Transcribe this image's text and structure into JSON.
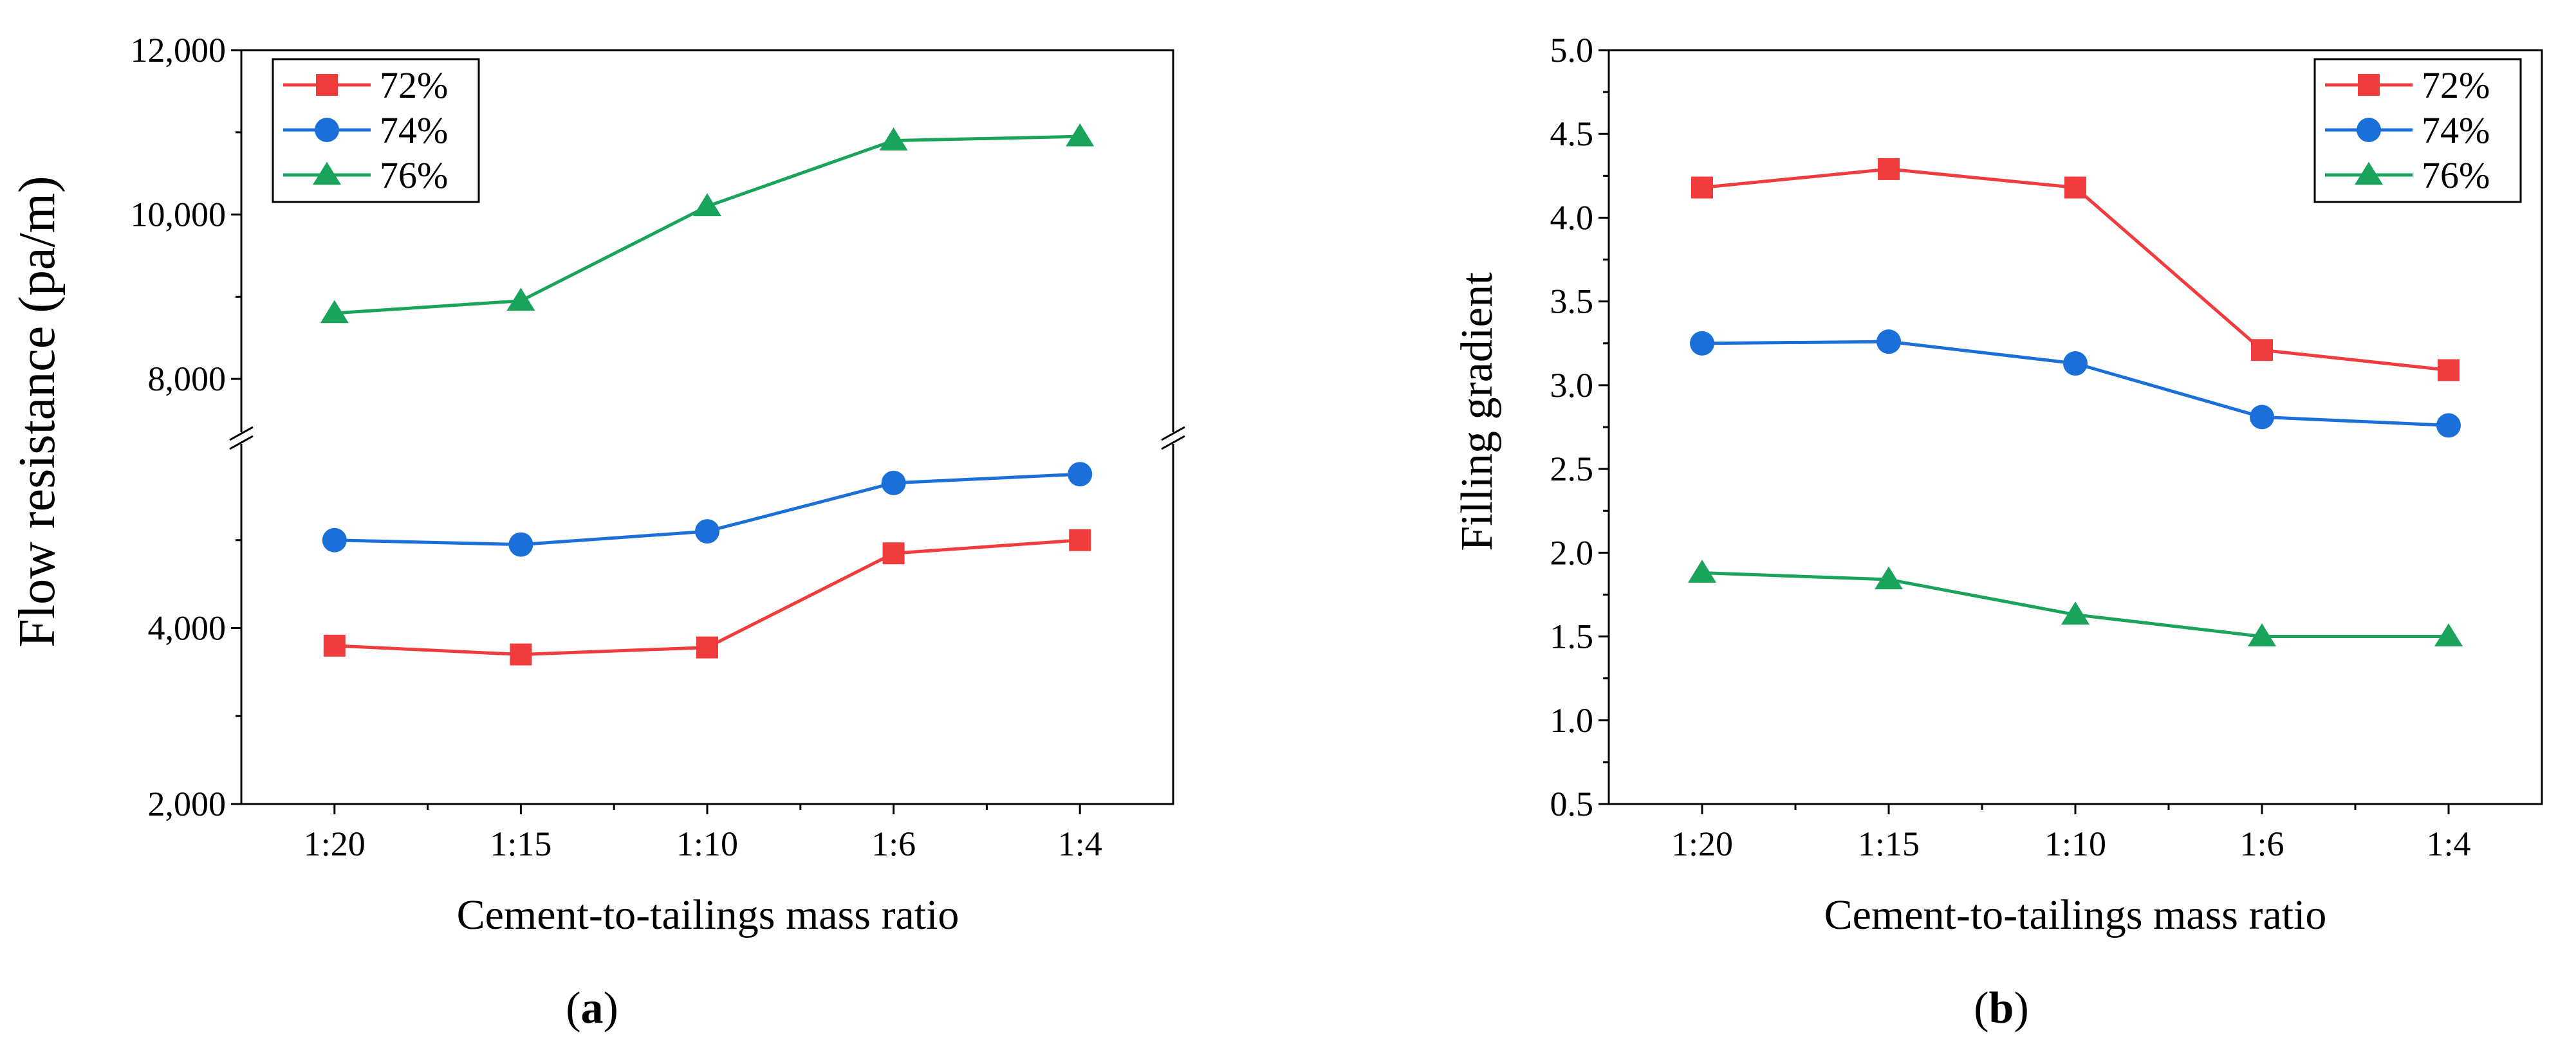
{
  "chart_data": [
    {
      "type": "line",
      "panel": "a",
      "caption_open": "(",
      "caption_letter": "a",
      "caption_close": ")",
      "xlabel": "Cement-to-tailings mass ratio",
      "ylabel": "Flow resistance (pa/m)",
      "categories": [
        "1:20",
        "1:15",
        "1:10",
        "1:6",
        "1:4"
      ],
      "axis_break": true,
      "lower_segment_ylim": [
        2000,
        6000
      ],
      "upper_segment_ylim": [
        7500,
        12000
      ],
      "y_ticks": [
        "2,000",
        "4,000",
        "8,000",
        "10,000",
        "12,000"
      ],
      "legend_position": "top-left",
      "series": [
        {
          "name": "72%",
          "marker": "square",
          "color": "#f03c3c",
          "values": [
            3800,
            3700,
            3780,
            4850,
            5000
          ]
        },
        {
          "name": "74%",
          "marker": "circle",
          "color": "#1a6fd8",
          "values": [
            5000,
            4950,
            5100,
            5650,
            5750
          ]
        },
        {
          "name": "76%",
          "marker": "triangle",
          "color": "#1aa35a",
          "values": [
            8800,
            8950,
            10100,
            10900,
            10950
          ]
        }
      ]
    },
    {
      "type": "line",
      "panel": "b",
      "caption_open": "(",
      "caption_letter": "b",
      "caption_close": ")",
      "xlabel": "Cement-to-tailings mass ratio",
      "ylabel": "Filling gradient",
      "categories": [
        "1:20",
        "1:15",
        "1:10",
        "1:6",
        "1:4"
      ],
      "ylim": [
        0.5,
        5.0
      ],
      "y_ticks": [
        "0.5",
        "1.0",
        "1.5",
        "2.0",
        "2.5",
        "3.0",
        "3.5",
        "4.0",
        "4.5",
        "5.0"
      ],
      "legend_position": "top-right",
      "series": [
        {
          "name": "72%",
          "marker": "square",
          "color": "#f03c3c",
          "values": [
            4.18,
            4.29,
            4.18,
            3.21,
            3.09
          ]
        },
        {
          "name": "74%",
          "marker": "circle",
          "color": "#1a6fd8",
          "values": [
            3.25,
            3.26,
            3.13,
            2.81,
            2.76
          ]
        },
        {
          "name": "76%",
          "marker": "triangle",
          "color": "#1aa35a",
          "values": [
            1.88,
            1.84,
            1.63,
            1.5,
            1.5
          ]
        }
      ]
    }
  ]
}
